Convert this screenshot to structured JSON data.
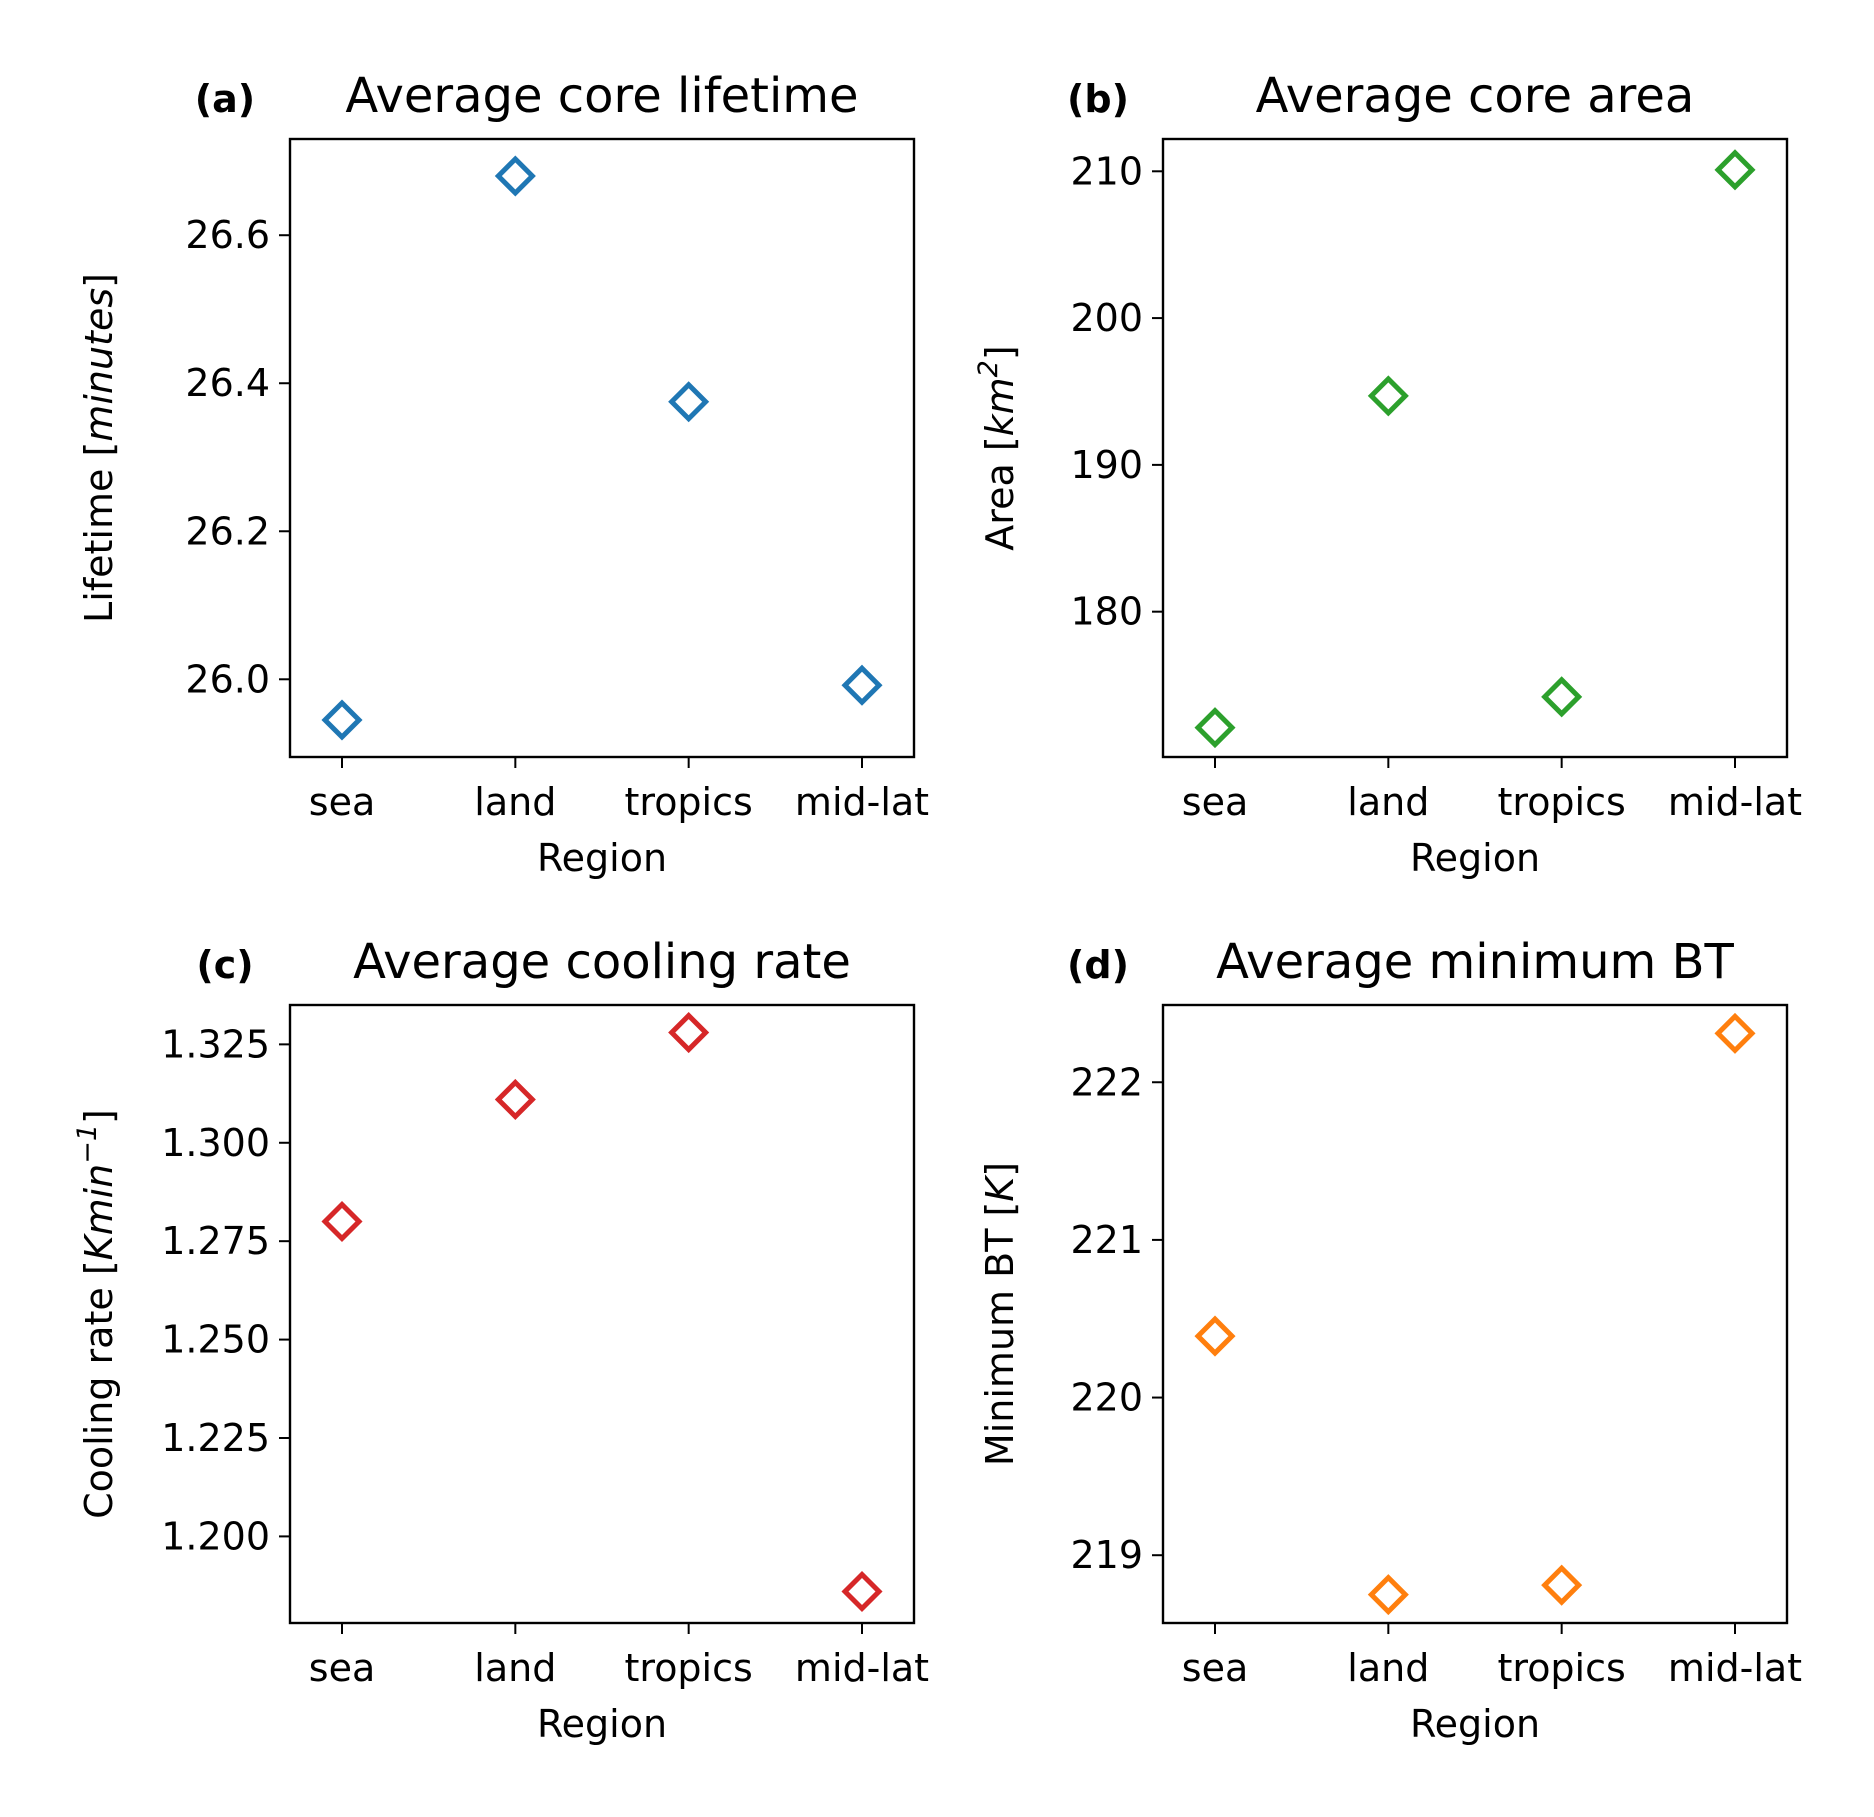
{
  "chart_data": [
    {
      "type": "scatter",
      "panel_label": "(a)",
      "title": "Average core lifetime",
      "xlabel": "Region",
      "ylabel": {
        "prefix": "Lifetime [",
        "unit": "minutes",
        "sup": "",
        "suffix": "]"
      },
      "categories": [
        "sea",
        "land",
        "tropics",
        "mid-lat"
      ],
      "values": [
        25.945,
        26.68,
        26.375,
        25.992
      ],
      "ylim": [
        25.895,
        26.73
      ],
      "yticks": [
        26.0,
        26.2,
        26.4,
        26.6
      ],
      "ytick_labels": [
        "26.0",
        "26.2",
        "26.4",
        "26.6"
      ],
      "marker": "diamond",
      "color": "#1f77b4",
      "grid": false
    },
    {
      "type": "scatter",
      "panel_label": "(b)",
      "title": "Average core area",
      "xlabel": "Region",
      "ylabel": {
        "prefix": "Area [",
        "unit": "km",
        "sup": "2",
        "suffix": "]"
      },
      "categories": [
        "sea",
        "land",
        "tropics",
        "mid-lat"
      ],
      "values": [
        172.1,
        194.7,
        174.2,
        210.1
      ],
      "ylim": [
        170.1,
        212.2
      ],
      "yticks": [
        180,
        190,
        200,
        210
      ],
      "ytick_labels": [
        "180",
        "190",
        "200",
        "210"
      ],
      "marker": "diamond",
      "color": "#2ca02c",
      "grid": false
    },
    {
      "type": "scatter",
      "panel_label": "(c)",
      "title": "Average cooling rate",
      "xlabel": "Region",
      "ylabel": {
        "prefix": "Cooling rate [",
        "unit": "Kmin",
        "sup": "−1",
        "suffix": "]"
      },
      "categories": [
        "sea",
        "land",
        "tropics",
        "mid-lat"
      ],
      "values": [
        1.28,
        1.311,
        1.328,
        1.186
      ],
      "ylim": [
        1.178,
        1.335
      ],
      "yticks": [
        1.2,
        1.225,
        1.25,
        1.275,
        1.3,
        1.325
      ],
      "ytick_labels": [
        "1.200",
        "1.225",
        "1.250",
        "1.275",
        "1.300",
        "1.325"
      ],
      "marker": "diamond",
      "color": "#d62728",
      "grid": false
    },
    {
      "type": "scatter",
      "panel_label": "(d)",
      "title": "Average minimum BT",
      "xlabel": "Region",
      "ylabel": {
        "prefix": "Minimum BT [",
        "unit": "K",
        "sup": "",
        "suffix": "]"
      },
      "categories": [
        "sea",
        "land",
        "tropics",
        "mid-lat"
      ],
      "values": [
        220.39,
        218.75,
        218.81,
        222.31
      ],
      "ylim": [
        218.57,
        222.49
      ],
      "yticks": [
        219,
        220,
        221,
        222
      ],
      "ytick_labels": [
        "219",
        "220",
        "221",
        "222"
      ],
      "marker": "diamond",
      "color": "#ff7f0e",
      "grid": false
    }
  ]
}
